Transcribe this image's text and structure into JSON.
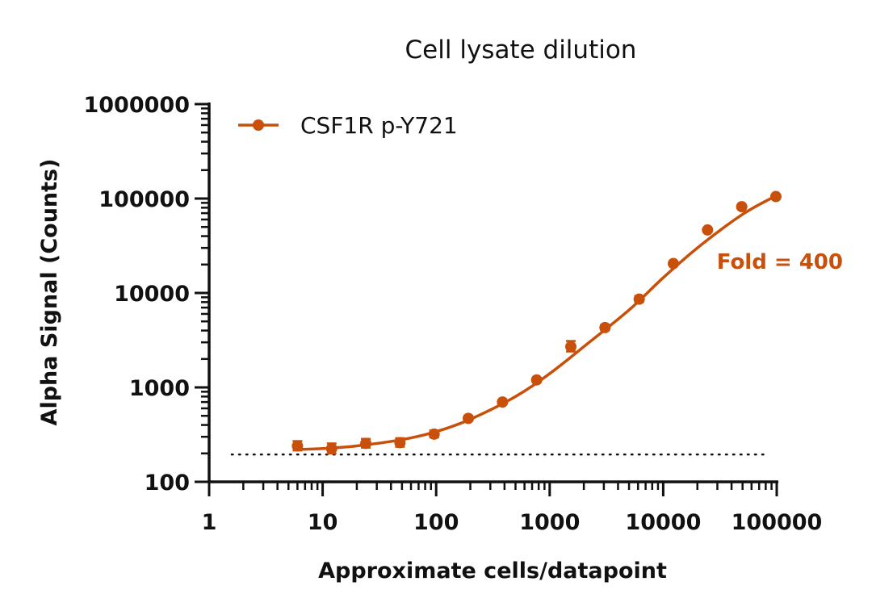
{
  "chart_data": {
    "type": "scatter",
    "title": "Cell lysate dilution",
    "xlabel": "Approximate cells/datapoint",
    "ylabel": "Alpha Signal (Counts)",
    "x_scale": "log",
    "y_scale": "log",
    "xlim": [
      1,
      100000
    ],
    "ylim": [
      100,
      1000000
    ],
    "x_tick_labels": [
      "1",
      "10",
      "100",
      "1000",
      "10000",
      "100000"
    ],
    "y_tick_labels": [
      "100",
      "1000",
      "10000",
      "100000",
      "1000000"
    ],
    "legend_position": "top-left",
    "color": "#C8500A",
    "series": [
      {
        "name": "CSF1R p-Y721",
        "x": [
          6,
          12,
          24,
          48,
          96,
          192,
          384,
          768,
          1536,
          3072,
          6144,
          12288,
          24576,
          49152,
          98304
        ],
        "y": [
          240,
          225,
          255,
          260,
          320,
          470,
          700,
          1200,
          2700,
          4300,
          8600,
          20500,
          46500,
          82000,
          105000
        ],
        "error_high": [
          270,
          255,
          285,
          290,
          350,
          500,
          730,
          1260,
          3100,
          4600,
          9300,
          21300,
          48000,
          84500,
          109000
        ],
        "error_low": [
          215,
          200,
          230,
          235,
          295,
          445,
          670,
          1150,
          2400,
          4050,
          8000,
          19700,
          45000,
          79500,
          101000
        ],
        "fit_curve": {
          "x": [
            6,
            10,
            20,
            50,
            100,
            200,
            500,
            1000,
            2000,
            5000,
            10000,
            20000,
            50000,
            100000
          ],
          "y": [
            220,
            225,
            240,
            280,
            340,
            460,
            800,
            1400,
            2700,
            6600,
            14500,
            30000,
            68000,
            108000
          ]
        }
      }
    ],
    "baseline": {
      "value": 195,
      "style": "dotted"
    },
    "annotations": [
      "Fold = 400"
    ]
  }
}
